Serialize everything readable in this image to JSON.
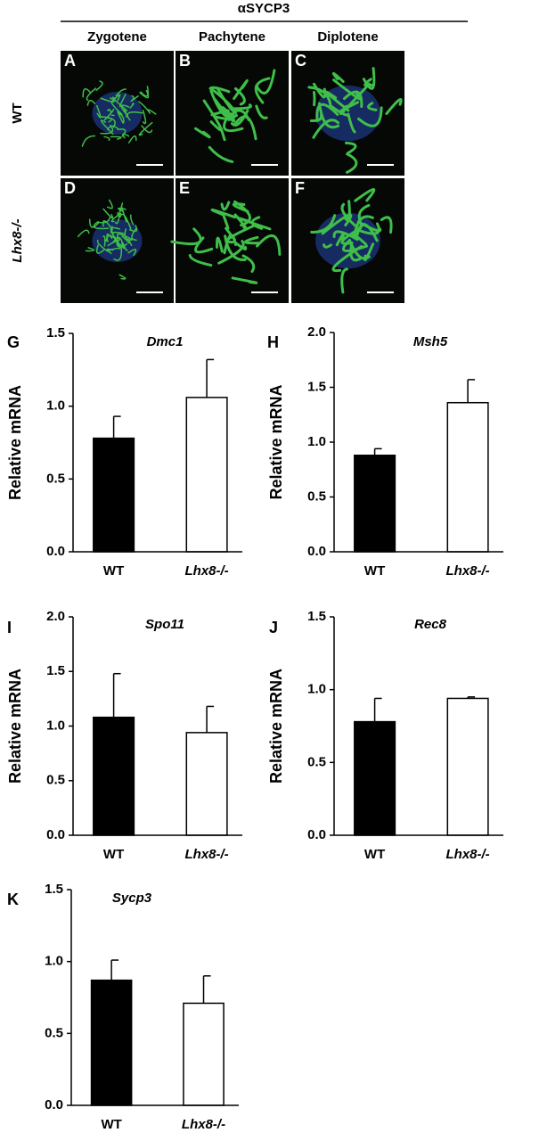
{
  "figure": {
    "header": "αSYCP3",
    "columns": [
      "Zygotene",
      "Pachytene",
      "Diplotene"
    ],
    "rows": [
      "WT",
      "Lhx8-/-"
    ],
    "panels": [
      "A",
      "B",
      "C",
      "D",
      "E",
      "F"
    ]
  },
  "chart_data": [
    {
      "type": "bar",
      "panel": "G",
      "title": "Dmc1",
      "ylabel": "Relative mRNA",
      "categories": [
        "WT",
        "Lhx8-/-"
      ],
      "values": [
        0.78,
        1.06
      ],
      "errors": [
        0.15,
        0.26
      ],
      "colors": [
        "#000000",
        "#ffffff"
      ],
      "ylim": [
        0,
        1.5
      ],
      "yticks": [
        {
          "value": 0,
          "label": "0.0"
        },
        {
          "value": 0.5,
          "label": "0.5"
        },
        {
          "value": 1,
          "label": "1.0"
        },
        {
          "value": 1.5,
          "label": "1.5"
        }
      ]
    },
    {
      "type": "bar",
      "panel": "H",
      "title": "Msh5",
      "ylabel": "Relative mRNA",
      "categories": [
        "WT",
        "Lhx8-/-"
      ],
      "values": [
        0.88,
        1.36
      ],
      "errors": [
        0.06,
        0.21
      ],
      "colors": [
        "#000000",
        "#ffffff"
      ],
      "ylim": [
        0,
        2
      ],
      "yticks": [
        {
          "value": 0,
          "label": "0.0"
        },
        {
          "value": 0.5,
          "label": "0.5"
        },
        {
          "value": 1,
          "label": "1.0"
        },
        {
          "value": 1.5,
          "label": "1.5"
        },
        {
          "value": 2,
          "label": "2.0"
        }
      ]
    },
    {
      "type": "bar",
      "panel": "I",
      "title": "Spo11",
      "ylabel": "Relative mRNA",
      "categories": [
        "WT",
        "Lhx8-/-"
      ],
      "values": [
        1.08,
        0.94
      ],
      "errors": [
        0.4,
        0.24
      ],
      "colors": [
        "#000000",
        "#ffffff"
      ],
      "ylim": [
        0,
        2
      ],
      "yticks": [
        {
          "value": 0,
          "label": "0.0"
        },
        {
          "value": 0.5,
          "label": "0.5"
        },
        {
          "value": 1,
          "label": "1.0"
        },
        {
          "value": 1.5,
          "label": "1.5"
        },
        {
          "value": 2,
          "label": "2.0"
        }
      ]
    },
    {
      "type": "bar",
      "panel": "J",
      "title": "Rec8",
      "ylabel": "Relative mRNA",
      "categories": [
        "WT",
        "Lhx8-/-"
      ],
      "values": [
        0.78,
        0.94
      ],
      "errors": [
        0.16,
        0.01
      ],
      "colors": [
        "#000000",
        "#ffffff"
      ],
      "ylim": [
        0,
        1.5
      ],
      "yticks": [
        {
          "value": 0,
          "label": "0.0"
        },
        {
          "value": 0.5,
          "label": "0.5"
        },
        {
          "value": 1,
          "label": "1.0"
        },
        {
          "value": 1.5,
          "label": "1.5"
        }
      ]
    },
    {
      "type": "bar",
      "panel": "K",
      "title": "Sycp3",
      "categories": [
        "WT",
        "Lhx8-/-"
      ],
      "values": [
        0.87,
        0.71
      ],
      "errors": [
        0.14,
        0.19
      ],
      "colors": [
        "#000000",
        "#ffffff"
      ],
      "ylim": [
        0,
        1.5
      ],
      "yticks": [
        {
          "value": 0,
          "label": "0.0"
        },
        {
          "value": 0.5,
          "label": "0.5"
        },
        {
          "value": 1,
          "label": "1.0"
        },
        {
          "value": 1.5,
          "label": "1.5"
        }
      ]
    }
  ]
}
